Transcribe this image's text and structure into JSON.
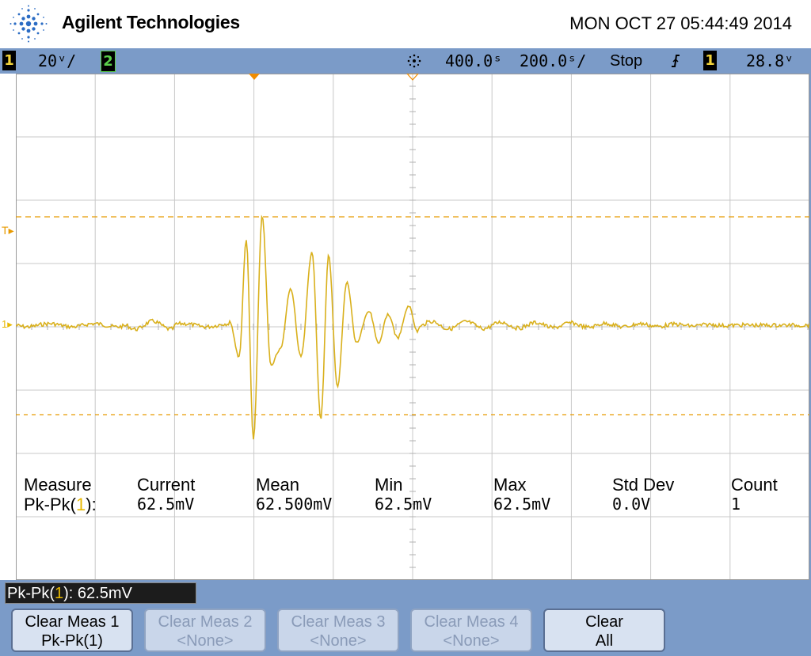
{
  "header": {
    "brand": "Agilent Technologies",
    "datetime": "MON OCT 27 05:44:49 2014",
    "logo": "agilent-spark-logo-icon"
  },
  "status": {
    "ch1_label": "1",
    "ch1_scale": "20ᵛ/",
    "ch2_label": "2",
    "acq_icon": "acquisition-spark-icon",
    "delay": "400.0ˢ",
    "timebase": "200.0ˢ/",
    "run_state": "Stop",
    "trigger_slope_icon": "rising-edge-trigger-icon",
    "trigger_source": "1",
    "trigger_level": "28.8ᵛ"
  },
  "screen": {
    "trigger_marker": "T",
    "ch1_ground_marker": "1",
    "colors": {
      "trace": "#d9b01c",
      "cursor": "#e89a00",
      "grid": "#c8c8c8",
      "orange": "#f08c00"
    }
  },
  "measurements": {
    "headers": [
      "Measure",
      "Current",
      "Mean",
      "Min",
      "Max",
      "Std Dev",
      "Count"
    ],
    "row_name_prefix": "Pk-Pk(",
    "row_name_channel": "1",
    "row_name_suffix": "):",
    "values": [
      "62.5mV",
      "62.500mV",
      "62.5mV",
      "62.5mV",
      "0.0V",
      "1"
    ]
  },
  "readout": {
    "prefix": "Pk-Pk(",
    "channel": "1",
    "suffix": "): 62.5mV"
  },
  "softkeys": [
    {
      "line1": "Clear Meas 1",
      "line2": "Pk-Pk(1)",
      "enabled": true
    },
    {
      "line1": "Clear Meas 2",
      "line2": "<None>",
      "enabled": false
    },
    {
      "line1": "Clear Meas 3",
      "line2": "<None>",
      "enabled": false
    },
    {
      "line1": "Clear Meas 4",
      "line2": "<None>",
      "enabled": false
    },
    {
      "line1": "Clear",
      "line2": "All",
      "enabled": true
    }
  ]
}
